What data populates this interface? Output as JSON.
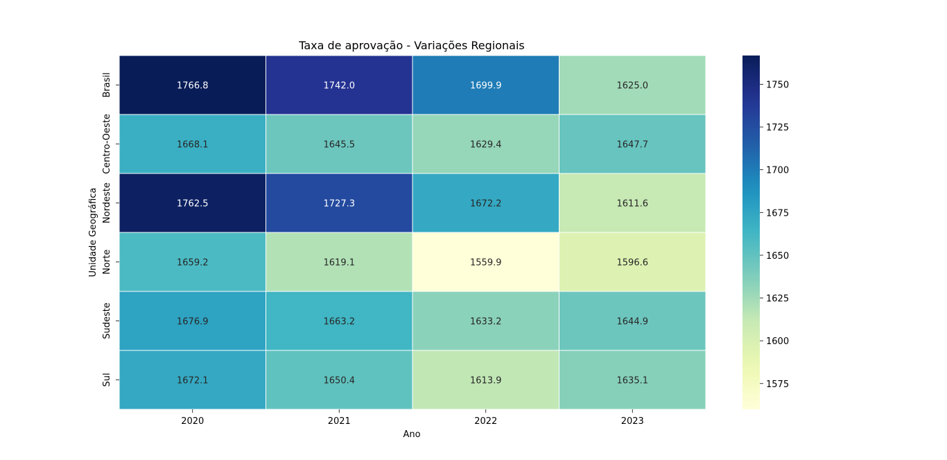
{
  "chart_data": {
    "type": "heatmap",
    "title": "Taxa de aprovação - Variações Regionais",
    "xlabel": "Ano",
    "ylabel": "Unidade Geográfica",
    "x": [
      "2020",
      "2021",
      "2022",
      "2023"
    ],
    "y": [
      "Brasil",
      "Centro-Oeste",
      "Nordeste",
      "Norte",
      "Sudeste",
      "Sul"
    ],
    "values": [
      [
        1766.8,
        1742.0,
        1699.9,
        1625.0
      ],
      [
        1668.1,
        1645.5,
        1629.4,
        1647.7
      ],
      [
        1762.5,
        1727.3,
        1672.2,
        1611.6
      ],
      [
        1659.2,
        1619.1,
        1559.9,
        1596.6
      ],
      [
        1676.9,
        1663.2,
        1633.2,
        1644.9
      ],
      [
        1672.1,
        1650.4,
        1613.9,
        1635.1
      ]
    ],
    "value_format": "1 decimal",
    "colormap": "YlGnBu",
    "colorbar": {
      "range": [
        1559.9,
        1766.8
      ],
      "ticks": [
        1575,
        1600,
        1625,
        1650,
        1675,
        1700,
        1725,
        1750
      ]
    },
    "grid": "white cell borders",
    "legend": "colorbar right"
  }
}
